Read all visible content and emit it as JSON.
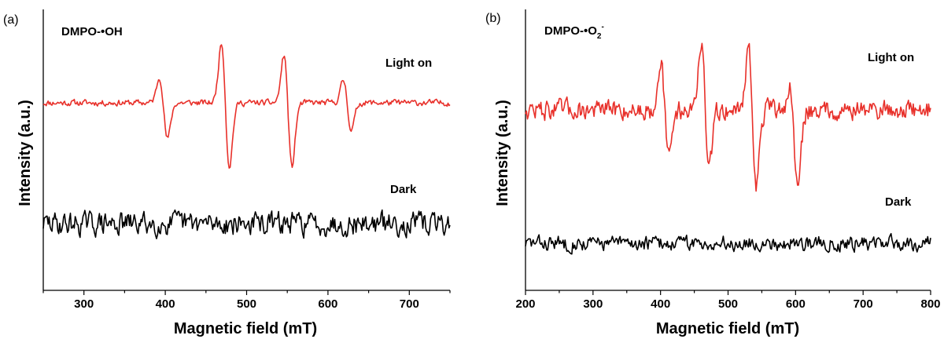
{
  "chart_data": [
    {
      "type": "line",
      "panel_label": "(a)",
      "title": "DMPO-•OH",
      "xlabel": "Magnetic field (mT)",
      "ylabel": "Intensity (a.u.)",
      "xlim": [
        250,
        750
      ],
      "xticks": [
        300,
        400,
        500,
        600,
        700
      ],
      "y_ticks_shown": false,
      "grid": false,
      "series": [
        {
          "name": "Light on",
          "color": "#e8302a",
          "baseline": 0,
          "noise": 0.035,
          "features": [
            {
              "x": 398,
              "pos": 0.42,
              "neg": -0.55
            },
            {
              "x": 474,
              "pos": 0.95,
              "neg": -1.0
            },
            {
              "x": 551,
              "pos": 0.78,
              "neg": -0.98
            },
            {
              "x": 624,
              "pos": 0.36,
              "neg": -0.42
            }
          ]
        },
        {
          "name": "Dark",
          "color": "#000000",
          "baseline": -1.55,
          "noise": 0.13,
          "features": []
        }
      ]
    },
    {
      "type": "line",
      "panel_label": "(b)",
      "title": "DMPO-•O2-",
      "title_parts": [
        "DMPO-•O",
        "2",
        "-"
      ],
      "xlabel": "Magnetic field (mT)",
      "ylabel": "Intensity (a.u.)",
      "xlim": [
        200,
        800
      ],
      "xticks": [
        200,
        300,
        400,
        500,
        600,
        700,
        800
      ],
      "y_ticks_shown": false,
      "grid": false,
      "series": [
        {
          "name": "Light on",
          "color": "#e8302a",
          "baseline": 0,
          "noise": 0.11,
          "features": [
            {
              "x": 406,
              "pos": 0.75,
              "neg": -0.72
            },
            {
              "x": 466,
              "pos": 1.0,
              "neg": -0.92
            },
            {
              "x": 536,
              "pos": 0.95,
              "neg": -1.12
            },
            {
              "x": 598,
              "pos": 0.38,
              "neg": -1.05
            }
          ]
        },
        {
          "name": "Dark",
          "color": "#000000",
          "baseline": -1.9,
          "noise": 0.1,
          "features": []
        }
      ]
    }
  ]
}
